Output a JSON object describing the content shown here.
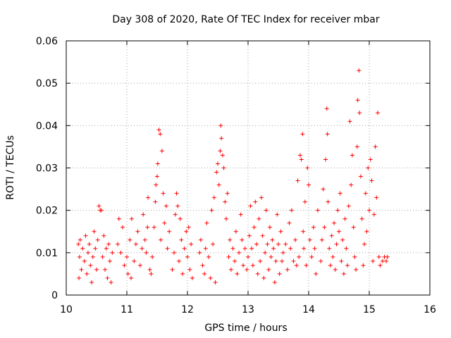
{
  "chart_data": {
    "type": "scatter",
    "title": "Day 308 of 2020, Rate Of TEC Index for receiver mbar",
    "xlabel": "GPS time / hours",
    "ylabel": "ROTI / TECUs",
    "xlim": [
      10,
      16
    ],
    "ylim": [
      0,
      0.06
    ],
    "x_ticks": [
      10,
      11,
      12,
      13,
      14,
      15,
      16
    ],
    "y_ticks": [
      0,
      0.01,
      0.02,
      0.03,
      0.04,
      0.05,
      0.06
    ],
    "x_tick_labels": [
      "10",
      "11",
      "12",
      "13",
      "14",
      "15",
      "16"
    ],
    "y_tick_labels": [
      "0",
      "0.01",
      "0.02",
      "0.03",
      "0.04",
      "0.05",
      "0.06"
    ],
    "grid": true,
    "marker": "+",
    "color": "#ff0000",
    "series": [
      {
        "name": "ROTI",
        "points": [
          [
            10.2,
            0.012
          ],
          [
            10.21,
            0.004
          ],
          [
            10.22,
            0.009
          ],
          [
            10.23,
            0.013
          ],
          [
            10.25,
            0.006
          ],
          [
            10.27,
            0.011
          ],
          [
            10.3,
            0.008
          ],
          [
            10.32,
            0.014
          ],
          [
            10.34,
            0.005
          ],
          [
            10.36,
            0.01
          ],
          [
            10.38,
            0.012
          ],
          [
            10.4,
            0.007
          ],
          [
            10.42,
            0.003
          ],
          [
            10.44,
            0.009
          ],
          [
            10.46,
            0.015
          ],
          [
            10.48,
            0.011
          ],
          [
            10.5,
            0.006
          ],
          [
            10.52,
            0.013
          ],
          [
            10.54,
            0.021
          ],
          [
            10.56,
            0.02
          ],
          [
            10.58,
            0.02
          ],
          [
            10.6,
            0.009
          ],
          [
            10.62,
            0.014
          ],
          [
            10.64,
            0.006
          ],
          [
            10.66,
            0.011
          ],
          [
            10.68,
            0.004
          ],
          [
            10.7,
            0.012
          ],
          [
            10.72,
            0.008
          ],
          [
            10.74,
            0.003
          ],
          [
            10.76,
            0.01
          ],
          [
            10.85,
            0.012
          ],
          [
            10.87,
            0.018
          ],
          [
            10.9,
            0.01
          ],
          [
            10.93,
            0.016
          ],
          [
            10.96,
            0.007
          ],
          [
            11.0,
            0.009
          ],
          [
            11.02,
            0.005
          ],
          [
            11.05,
            0.013
          ],
          [
            11.07,
            0.004
          ],
          [
            11.08,
            0.018
          ],
          [
            11.12,
            0.008
          ],
          [
            11.15,
            0.012
          ],
          [
            11.18,
            0.015
          ],
          [
            11.22,
            0.007
          ],
          [
            11.25,
            0.011
          ],
          [
            11.27,
            0.019
          ],
          [
            11.3,
            0.013
          ],
          [
            11.32,
            0.01
          ],
          [
            11.34,
            0.016
          ],
          [
            11.35,
            0.023
          ],
          [
            11.38,
            0.006
          ],
          [
            11.4,
            0.005
          ],
          [
            11.42,
            0.009
          ],
          [
            11.45,
            0.016
          ],
          [
            11.47,
            0.022
          ],
          [
            11.48,
            0.026
          ],
          [
            11.5,
            0.028
          ],
          [
            11.51,
            0.031
          ],
          [
            11.53,
            0.039
          ],
          [
            11.55,
            0.038
          ],
          [
            11.56,
            0.013
          ],
          [
            11.58,
            0.034
          ],
          [
            11.6,
            0.024
          ],
          [
            11.62,
            0.017
          ],
          [
            11.65,
            0.021
          ],
          [
            11.67,
            0.011
          ],
          [
            11.7,
            0.015
          ],
          [
            11.75,
            0.006
          ],
          [
            11.78,
            0.01
          ],
          [
            11.8,
            0.019
          ],
          [
            11.82,
            0.024
          ],
          [
            11.84,
            0.021
          ],
          [
            11.86,
            0.008
          ],
          [
            11.88,
            0.018
          ],
          [
            11.9,
            0.013
          ],
          [
            11.92,
            0.005
          ],
          [
            11.95,
            0.011
          ],
          [
            11.98,
            0.015
          ],
          [
            12.0,
            0.009
          ],
          [
            12.02,
            0.016
          ],
          [
            12.04,
            0.006
          ],
          [
            12.06,
            0.012
          ],
          [
            12.08,
            0.004
          ],
          [
            12.2,
            0.01
          ],
          [
            12.22,
            0.013
          ],
          [
            12.25,
            0.007
          ],
          [
            12.28,
            0.005
          ],
          [
            12.3,
            0.011
          ],
          [
            12.32,
            0.017
          ],
          [
            12.35,
            0.009
          ],
          [
            12.38,
            0.004
          ],
          [
            12.4,
            0.02
          ],
          [
            12.42,
            0.012
          ],
          [
            12.44,
            0.023
          ],
          [
            12.46,
            0.003
          ],
          [
            12.48,
            0.029
          ],
          [
            12.5,
            0.031
          ],
          [
            12.52,
            0.026
          ],
          [
            12.54,
            0.034
          ],
          [
            12.55,
            0.04
          ],
          [
            12.56,
            0.037
          ],
          [
            12.58,
            0.033
          ],
          [
            12.6,
            0.03
          ],
          [
            12.62,
            0.022
          ],
          [
            12.64,
            0.018
          ],
          [
            12.66,
            0.024
          ],
          [
            12.68,
            0.009
          ],
          [
            12.7,
            0.013
          ],
          [
            12.72,
            0.006
          ],
          [
            12.75,
            0.011
          ],
          [
            12.78,
            0.008
          ],
          [
            12.8,
            0.015
          ],
          [
            12.82,
            0.005
          ],
          [
            12.85,
            0.01
          ],
          [
            12.88,
            0.019
          ],
          [
            12.9,
            0.013
          ],
          [
            12.92,
            0.007
          ],
          [
            12.95,
            0.011
          ],
          [
            12.98,
            0.006
          ],
          [
            13.0,
            0.009
          ],
          [
            13.02,
            0.014
          ],
          [
            13.04,
            0.021
          ],
          [
            13.06,
            0.011
          ],
          [
            13.08,
            0.007
          ],
          [
            13.1,
            0.016
          ],
          [
            13.12,
            0.022
          ],
          [
            13.14,
            0.012
          ],
          [
            13.16,
            0.005
          ],
          [
            13.18,
            0.018
          ],
          [
            13.2,
            0.008
          ],
          [
            13.22,
            0.023
          ],
          [
            13.24,
            0.014
          ],
          [
            13.26,
            0.004
          ],
          [
            13.28,
            0.01
          ],
          [
            13.3,
            0.02
          ],
          [
            13.32,
            0.012
          ],
          [
            13.34,
            0.006
          ],
          [
            13.36,
            0.016
          ],
          [
            13.38,
            0.009
          ],
          [
            13.4,
            0.013
          ],
          [
            13.42,
            0.011
          ],
          [
            13.44,
            0.003
          ],
          [
            13.46,
            0.008
          ],
          [
            13.48,
            0.019
          ],
          [
            13.5,
            0.012
          ],
          [
            13.52,
            0.005
          ],
          [
            13.54,
            0.015
          ],
          [
            13.56,
            0.008
          ],
          [
            13.58,
            0.01
          ],
          [
            13.62,
            0.012
          ],
          [
            13.65,
            0.006
          ],
          [
            13.68,
            0.017
          ],
          [
            13.7,
            0.011
          ],
          [
            13.72,
            0.02
          ],
          [
            13.75,
            0.008
          ],
          [
            13.78,
            0.013
          ],
          [
            13.8,
            0.007
          ],
          [
            13.82,
            0.027
          ],
          [
            13.84,
            0.009
          ],
          [
            13.86,
            0.033
          ],
          [
            13.88,
            0.032
          ],
          [
            13.9,
            0.038
          ],
          [
            13.91,
            0.015
          ],
          [
            13.92,
            0.011
          ],
          [
            13.94,
            0.022
          ],
          [
            13.96,
            0.007
          ],
          [
            13.98,
            0.03
          ],
          [
            14.0,
            0.026
          ],
          [
            14.02,
            0.013
          ],
          [
            14.05,
            0.009
          ],
          [
            14.08,
            0.016
          ],
          [
            14.1,
            0.011
          ],
          [
            14.12,
            0.005
          ],
          [
            14.15,
            0.02
          ],
          [
            14.2,
            0.008
          ],
          [
            14.22,
            0.013
          ],
          [
            14.24,
            0.025
          ],
          [
            14.26,
            0.016
          ],
          [
            14.28,
            0.032
          ],
          [
            14.3,
            0.044
          ],
          [
            14.31,
            0.038
          ],
          [
            14.32,
            0.022
          ],
          [
            14.34,
            0.011
          ],
          [
            14.36,
            0.007
          ],
          [
            14.38,
            0.014
          ],
          [
            14.4,
            0.009
          ],
          [
            14.42,
            0.017
          ],
          [
            14.44,
            0.006
          ],
          [
            14.46,
            0.012
          ],
          [
            14.48,
            0.02
          ],
          [
            14.5,
            0.015
          ],
          [
            14.52,
            0.024
          ],
          [
            14.54,
            0.008
          ],
          [
            14.56,
            0.013
          ],
          [
            14.58,
            0.005
          ],
          [
            14.6,
            0.018
          ],
          [
            14.62,
            0.011
          ],
          [
            14.64,
            0.007
          ],
          [
            14.66,
            0.021
          ],
          [
            14.68,
            0.041
          ],
          [
            14.7,
            0.026
          ],
          [
            14.72,
            0.033
          ],
          [
            14.74,
            0.016
          ],
          [
            14.76,
            0.009
          ],
          [
            14.78,
            0.006
          ],
          [
            14.8,
            0.035
          ],
          [
            14.81,
            0.046
          ],
          [
            14.83,
            0.053
          ],
          [
            14.84,
            0.043
          ],
          [
            14.86,
            0.028
          ],
          [
            14.88,
            0.018
          ],
          [
            14.9,
            0.007
          ],
          [
            14.92,
            0.012
          ],
          [
            14.94,
            0.024
          ],
          [
            14.96,
            0.015
          ],
          [
            14.98,
            0.03
          ],
          [
            15.0,
            0.02
          ],
          [
            15.02,
            0.032
          ],
          [
            15.04,
            0.027
          ],
          [
            15.06,
            0.008
          ],
          [
            15.08,
            0.019
          ],
          [
            15.1,
            0.035
          ],
          [
            15.12,
            0.023
          ],
          [
            15.14,
            0.043
          ],
          [
            15.16,
            0.009
          ],
          [
            15.18,
            0.007
          ],
          [
            15.22,
            0.008
          ],
          [
            15.25,
            0.009
          ],
          [
            15.28,
            0.008
          ],
          [
            15.3,
            0.009
          ]
        ]
      }
    ]
  }
}
